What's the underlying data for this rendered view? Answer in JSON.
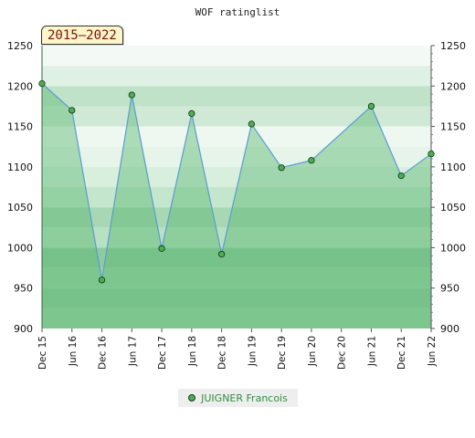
{
  "chart_data": {
    "type": "area",
    "title": "WOF ratinglist",
    "badge": "2015–2022",
    "x": [
      "Dec 15",
      "Jun 16",
      "Dec 16",
      "Jun 17",
      "Dec 17",
      "Jun 18",
      "Dec 18",
      "Jun 19",
      "Dec 19",
      "Jun 20",
      "Dec 20",
      "Jun 21",
      "Dec 21",
      "Jun 22"
    ],
    "series": [
      {
        "name": "JUIGNER Francois",
        "values": [
          1203,
          1170,
          960,
          1189,
          999,
          1166,
          992,
          1153,
          1099,
          1108,
          null,
          1175,
          1089,
          1116
        ]
      }
    ],
    "yticks": [
      900,
      950,
      1000,
      1050,
      1100,
      1150,
      1200,
      1250
    ],
    "ylim": [
      900,
      1250
    ],
    "xlabel": "",
    "ylabel": "",
    "legend_position": "bottom",
    "grid": true,
    "colors": {
      "line": "#5b9bd5",
      "fill": "#5cb870",
      "marker": "#4caf50",
      "band_dark": "#7fc694",
      "band_light": "#e8f4ec"
    }
  },
  "legend": {
    "label": "JUIGNER Francois"
  }
}
